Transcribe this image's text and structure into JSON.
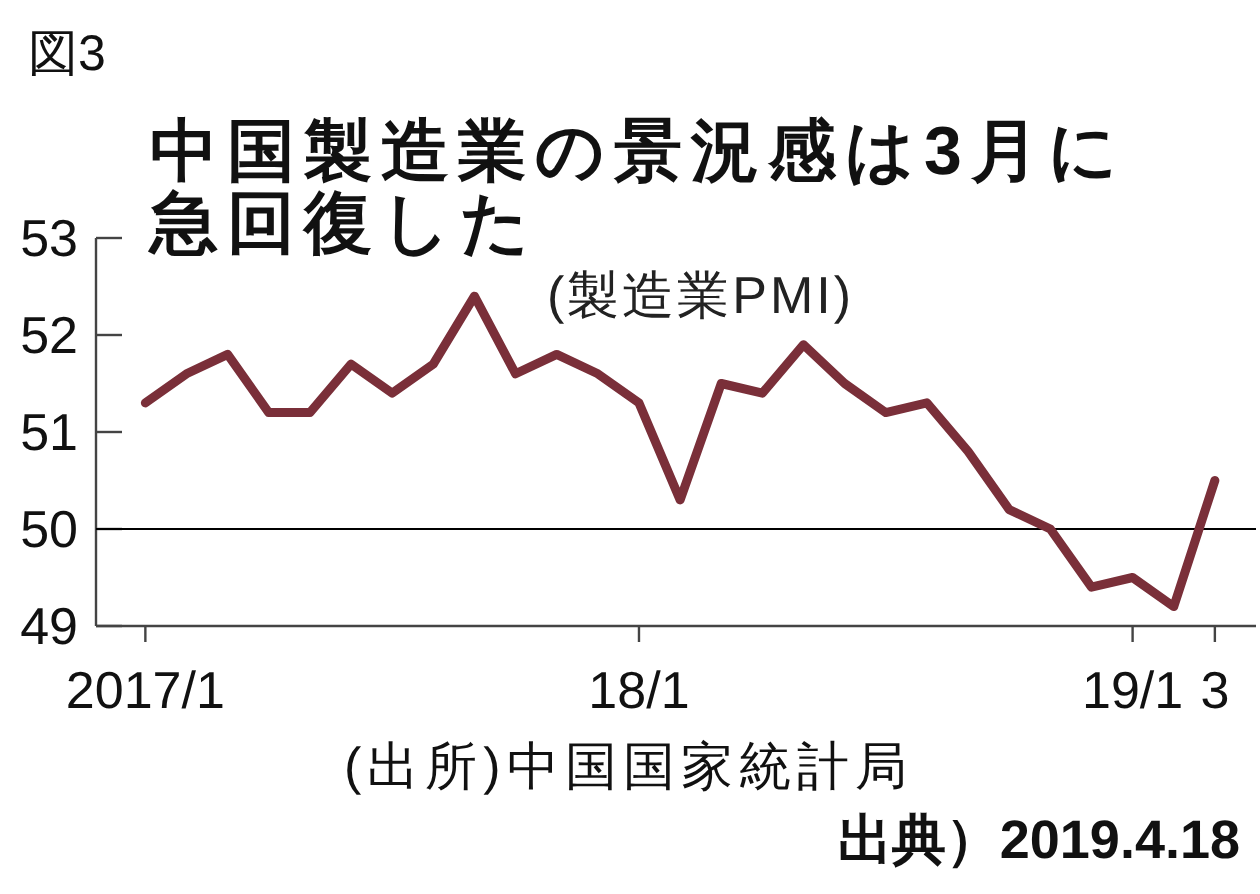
{
  "chart_data": {
    "type": "line",
    "title": "中国製造業の景況感は3月に急回復した",
    "subtitle": "(製造業PMI)",
    "x": [
      "2017-01",
      "2017-02",
      "2017-03",
      "2017-04",
      "2017-05",
      "2017-06",
      "2017-07",
      "2017-08",
      "2017-09",
      "2017-10",
      "2017-11",
      "2017-12",
      "2018-01",
      "2018-02",
      "2018-03",
      "2018-04",
      "2018-05",
      "2018-06",
      "2018-07",
      "2018-08",
      "2018-09",
      "2018-10",
      "2018-11",
      "2018-12",
      "2019-01",
      "2019-02",
      "2019-03"
    ],
    "values": [
      51.3,
      51.6,
      51.8,
      51.2,
      51.2,
      51.7,
      51.4,
      51.7,
      52.4,
      51.6,
      51.8,
      51.6,
      51.3,
      50.3,
      51.5,
      51.4,
      51.9,
      51.5,
      51.2,
      51.3,
      50.8,
      50.2,
      50.0,
      49.4,
      49.5,
      49.2,
      50.5
    ],
    "color": "#7a2f39",
    "xlim": [
      "2016-11-25",
      "2019-04"
    ],
    "xticks": [
      {
        "value": "2017-01",
        "label": "2017/1"
      },
      {
        "value": "2018-01",
        "label": "18/1"
      },
      {
        "value": "2019-01",
        "label": "19/1"
      },
      {
        "value": "2019-03",
        "label": "3"
      }
    ],
    "ylim": [
      49,
      53
    ],
    "yticks": [
      49,
      50,
      51,
      52,
      53
    ],
    "ref_lines": [
      {
        "axis": "y",
        "value": 50,
        "color": "#000000"
      }
    ],
    "annotations": [
      "図3",
      "(出所)中国国家統計局",
      "出典）2019.4.18"
    ]
  }
}
